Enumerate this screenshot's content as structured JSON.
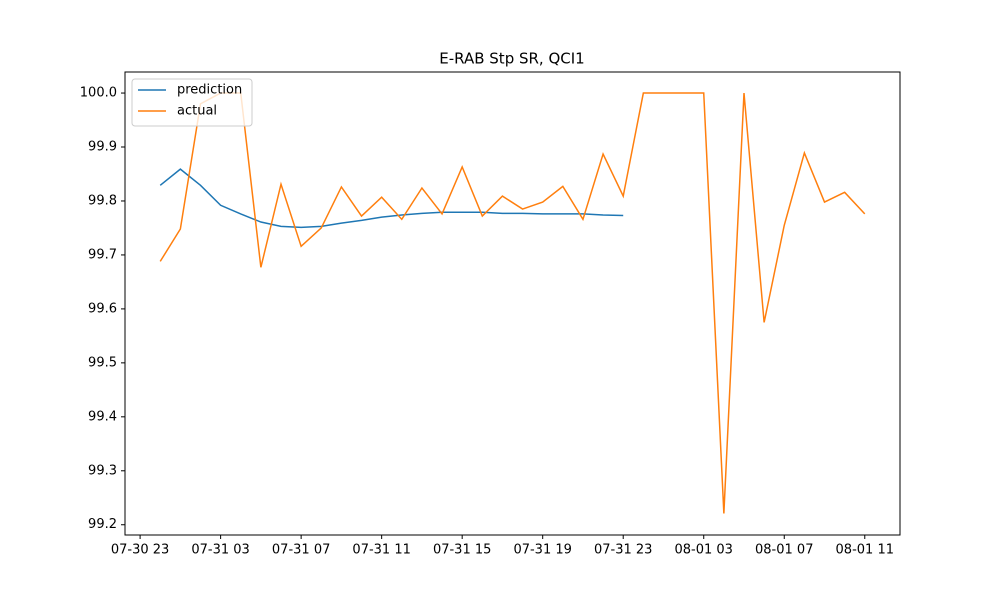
{
  "chart_data": {
    "type": "line",
    "title": "E-RAB Stp SR, QCI1",
    "x": [
      "07-31 00",
      "07-31 01",
      "07-31 02",
      "07-31 03",
      "07-31 04",
      "07-31 05",
      "07-31 06",
      "07-31 07",
      "07-31 08",
      "07-31 09",
      "07-31 10",
      "07-31 11",
      "07-31 12",
      "07-31 13",
      "07-31 14",
      "07-31 15",
      "07-31 16",
      "07-31 17",
      "07-31 18",
      "07-31 19",
      "07-31 20",
      "07-31 21",
      "07-31 22",
      "07-31 23",
      "08-01 00",
      "08-01 01",
      "08-01 02",
      "08-01 03",
      "08-01 04",
      "08-01 05",
      "08-01 06",
      "08-01 07",
      "08-01 08",
      "08-01 09",
      "08-01 10",
      "08-01 11"
    ],
    "series": [
      {
        "name": "prediction",
        "color": "#1f77b4",
        "values": [
          99.829,
          99.859,
          99.829,
          99.792,
          99.776,
          99.761,
          99.753,
          99.751,
          99.753,
          99.759,
          99.764,
          99.77,
          99.774,
          99.777,
          99.779,
          99.779,
          99.779,
          99.777,
          99.777,
          99.776,
          99.776,
          99.776,
          99.774,
          99.773,
          null,
          null,
          null,
          null,
          null,
          null,
          null,
          null,
          null,
          null,
          null,
          null
        ]
      },
      {
        "name": "actual",
        "color": "#ff7f0e",
        "values": [
          99.688,
          99.748,
          99.98,
          100.0,
          100.0,
          99.677,
          99.831,
          99.716,
          99.75,
          99.826,
          99.772,
          99.807,
          99.766,
          99.824,
          99.776,
          99.863,
          99.772,
          99.809,
          99.785,
          99.798,
          99.827,
          99.766,
          99.887,
          99.809,
          100.0,
          100.0,
          100.0,
          100.0,
          99.221,
          100.0,
          99.575,
          99.755,
          99.889,
          99.798,
          99.816,
          99.776
        ]
      }
    ],
    "xlim": [
      "07-30 22:15",
      "08-01 12:45"
    ],
    "xticks": [
      "07-30 23",
      "07-31 03",
      "07-31 07",
      "07-31 11",
      "07-31 15",
      "07-31 19",
      "07-31 23",
      "08-01 03",
      "08-01 07",
      "08-01 11"
    ],
    "ylim": [
      99.181,
      100.039
    ],
    "yticks": [
      99.2,
      99.3,
      99.4,
      99.5,
      99.6,
      99.7,
      99.8,
      99.9,
      {
        "value": 100,
        "label": "100.0"
      }
    ],
    "legend": "upper left"
  }
}
